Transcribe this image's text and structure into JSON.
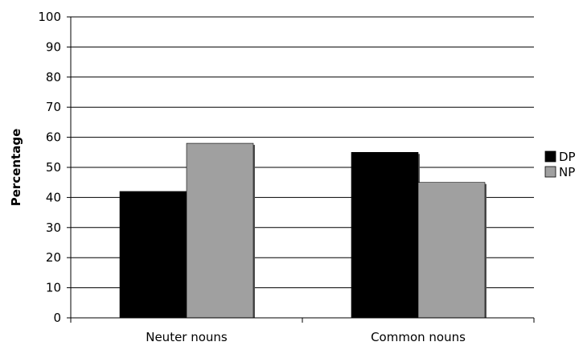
{
  "chart_data": {
    "type": "bar",
    "categories": [
      "Neuter nouns",
      "Common nouns"
    ],
    "series": [
      {
        "name": "DP",
        "values": [
          42,
          55
        ],
        "color": "#000000"
      },
      {
        "name": "NP",
        "values": [
          58,
          45
        ],
        "color": "#a0a0a0"
      }
    ],
    "ylabel": "Percentage",
    "xlabel": "",
    "ylim": [
      0,
      100
    ],
    "yticks": [
      0,
      10,
      20,
      30,
      40,
      50,
      60,
      70,
      80,
      90,
      100
    ],
    "grid": true,
    "legend_position": "right"
  }
}
